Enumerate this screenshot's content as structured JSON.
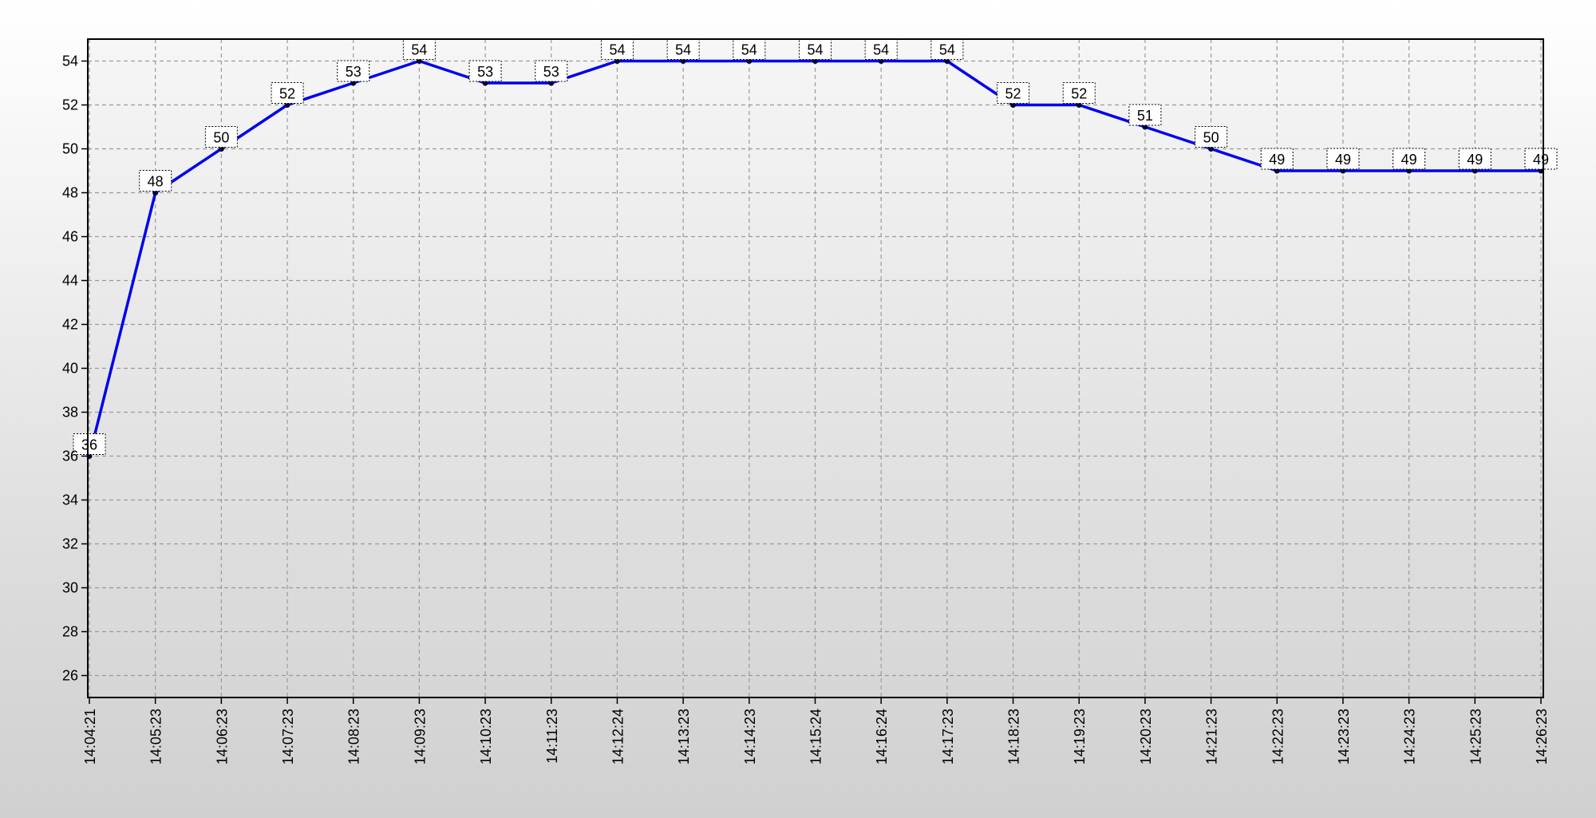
{
  "chart_data": {
    "type": "line",
    "title": "",
    "xlabel": "",
    "ylabel": "",
    "categories": [
      "14:04:21",
      "14:05:23",
      "14:06:23",
      "14:07:23",
      "14:08:23",
      "14:09:23",
      "14:10:23",
      "14:11:23",
      "14:12:24",
      "14:13:23",
      "14:14:23",
      "14:15:24",
      "14:16:24",
      "14:17:23",
      "14:18:23",
      "14:19:23",
      "14:20:23",
      "14:21:23",
      "14:22:23",
      "14:23:23",
      "14:24:23",
      "14:25:23",
      "14:26:23"
    ],
    "series": [
      {
        "values": [
          36,
          48,
          50,
          52,
          53,
          54,
          53,
          53,
          54,
          54,
          54,
          54,
          54,
          54,
          52,
          52,
          51,
          50,
          49,
          49,
          49,
          49,
          49
        ]
      }
    ],
    "yticks": [
      26,
      28,
      30,
      32,
      34,
      36,
      38,
      40,
      42,
      44,
      46,
      48,
      50,
      52,
      54
    ],
    "ylim": [
      25,
      55
    ],
    "grid": true,
    "data_labels": true,
    "colors": {
      "line": "#0000ee",
      "marker": "#000033",
      "plot_background": "#f4f4f4"
    }
  }
}
